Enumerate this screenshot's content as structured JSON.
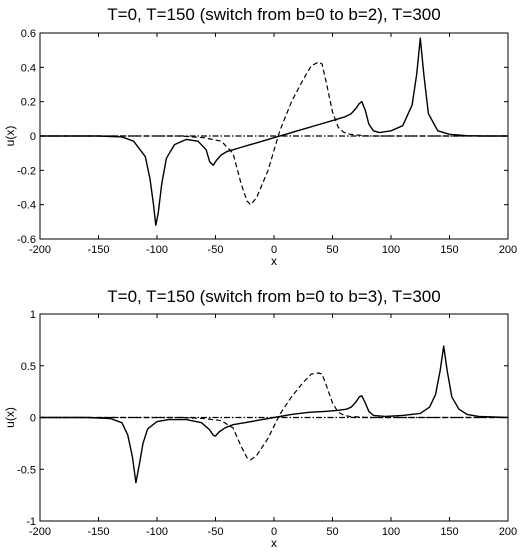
{
  "chart_data": [
    {
      "type": "line",
      "title": "T=0, T=150 (switch from b=0 to b=2), T=300",
      "xlabel": "x",
      "ylabel": "u(x)",
      "xlim": [
        -200,
        200
      ],
      "ylim": [
        -0.6,
        0.6
      ],
      "xticks": [
        -200,
        -150,
        -100,
        -50,
        0,
        50,
        100,
        150,
        200
      ],
      "xtick_labels": [
        "-200",
        "-150",
        "-100",
        "-50",
        "0",
        "50",
        "100",
        "150",
        "200"
      ],
      "yticks": [
        -0.6,
        -0.4,
        -0.2,
        0,
        0.2,
        0.4,
        0.6
      ],
      "ytick_labels": [
        "-0.6",
        "-0.4",
        "-0.2",
        "0",
        "0.2",
        "0.4",
        "0.6"
      ],
      "grid": false,
      "series": [
        {
          "style": "dashdot",
          "x": [
            -200,
            -130,
            -120,
            -115,
            115,
            125,
            130,
            200
          ],
          "y": [
            0,
            0,
            0,
            0,
            0,
            0,
            0,
            0
          ]
        },
        {
          "style": "dashed",
          "x": [
            -200,
            -120,
            -100,
            -80,
            -60,
            -45,
            -35,
            -28,
            -23,
            -20,
            -15,
            -5,
            5,
            15,
            25,
            32,
            38,
            41,
            45,
            50,
            55,
            60,
            65,
            80,
            100,
            120,
            200
          ],
          "y": [
            0,
            0,
            0,
            0,
            -0.01,
            -0.03,
            -0.1,
            -0.28,
            -0.38,
            -0.4,
            -0.36,
            -0.2,
            0.03,
            0.2,
            0.33,
            0.41,
            0.43,
            0.42,
            0.3,
            0.14,
            0.05,
            0.02,
            0.01,
            0,
            0,
            0,
            0
          ]
        },
        {
          "style": "solid",
          "x": [
            -200,
            -150,
            -130,
            -120,
            -110,
            -106,
            -103,
            -101,
            -99,
            -96,
            -92,
            -85,
            -75,
            -65,
            -58,
            -55,
            -52,
            -49,
            -45,
            -40,
            -30,
            -20,
            -10,
            0,
            10,
            20,
            30,
            40,
            50,
            60,
            66,
            70,
            73,
            75,
            78,
            81,
            85,
            90,
            100,
            110,
            118,
            122,
            125,
            128,
            132,
            140,
            150,
            165,
            180,
            200
          ],
          "y": [
            0,
            0,
            -0.005,
            -0.03,
            -0.12,
            -0.25,
            -0.4,
            -0.52,
            -0.45,
            -0.28,
            -0.13,
            -0.05,
            -0.02,
            -0.03,
            -0.08,
            -0.15,
            -0.17,
            -0.14,
            -0.11,
            -0.09,
            -0.07,
            -0.05,
            -0.03,
            -0.01,
            0.01,
            0.03,
            0.05,
            0.07,
            0.09,
            0.11,
            0.13,
            0.16,
            0.19,
            0.2,
            0.15,
            0.07,
            0.03,
            0.02,
            0.03,
            0.06,
            0.18,
            0.36,
            0.57,
            0.36,
            0.13,
            0.03,
            0.01,
            0.002,
            0,
            0
          ]
        }
      ]
    },
    {
      "type": "line",
      "title": "T=0, T=150 (switch from b=0 to b=3), T=300",
      "xlabel": "x",
      "ylabel": "u(x)",
      "xlim": [
        -200,
        200
      ],
      "ylim": [
        -1,
        1
      ],
      "xticks": [
        -200,
        -150,
        -100,
        -50,
        0,
        50,
        100,
        150,
        200
      ],
      "xtick_labels": [
        "-200",
        "-150",
        "-100",
        "-50",
        "0",
        "50",
        "100",
        "150",
        "200"
      ],
      "yticks": [
        -1,
        -0.5,
        0,
        0.5,
        1
      ],
      "ytick_labels": [
        "-1",
        "-0.5",
        "0",
        "0.5",
        "1"
      ],
      "grid": false,
      "series": [
        {
          "style": "dashdot",
          "x": [
            -200,
            -130,
            130,
            200
          ],
          "y": [
            0,
            0,
            0,
            0
          ]
        },
        {
          "style": "dashed",
          "x": [
            -200,
            -120,
            -100,
            -80,
            -60,
            -45,
            -35,
            -28,
            -23,
            -20,
            -15,
            -5,
            5,
            15,
            25,
            32,
            38,
            41,
            45,
            50,
            55,
            60,
            65,
            80,
            100,
            120,
            200
          ],
          "y": [
            0,
            0,
            0,
            0,
            -0.01,
            -0.03,
            -0.1,
            -0.28,
            -0.39,
            -0.41,
            -0.37,
            -0.2,
            0.03,
            0.2,
            0.34,
            0.42,
            0.43,
            0.42,
            0.3,
            0.14,
            0.05,
            0.02,
            0.01,
            0,
            0,
            0,
            0
          ]
        },
        {
          "style": "solid",
          "x": [
            -200,
            -160,
            -140,
            -130,
            -125,
            -121,
            -118,
            -115,
            -112,
            -108,
            -100,
            -90,
            -75,
            -62,
            -55,
            -52,
            -50,
            -47,
            -42,
            -35,
            -25,
            -15,
            0,
            15,
            30,
            45,
            55,
            62,
            66,
            70,
            73,
            75,
            78,
            81,
            85,
            95,
            110,
            125,
            133,
            138,
            142,
            145,
            148,
            152,
            158,
            165,
            175,
            200
          ],
          "y": [
            0,
            0,
            -0.01,
            -0.05,
            -0.17,
            -0.38,
            -0.63,
            -0.45,
            -0.25,
            -0.11,
            -0.04,
            -0.02,
            -0.02,
            -0.05,
            -0.12,
            -0.17,
            -0.18,
            -0.14,
            -0.1,
            -0.07,
            -0.05,
            -0.03,
            0,
            0.03,
            0.05,
            0.06,
            0.07,
            0.08,
            0.1,
            0.15,
            0.2,
            0.21,
            0.14,
            0.06,
            0.02,
            0.01,
            0.02,
            0.04,
            0.1,
            0.22,
            0.45,
            0.69,
            0.45,
            0.2,
            0.08,
            0.03,
            0.01,
            0
          ]
        }
      ]
    }
  ]
}
